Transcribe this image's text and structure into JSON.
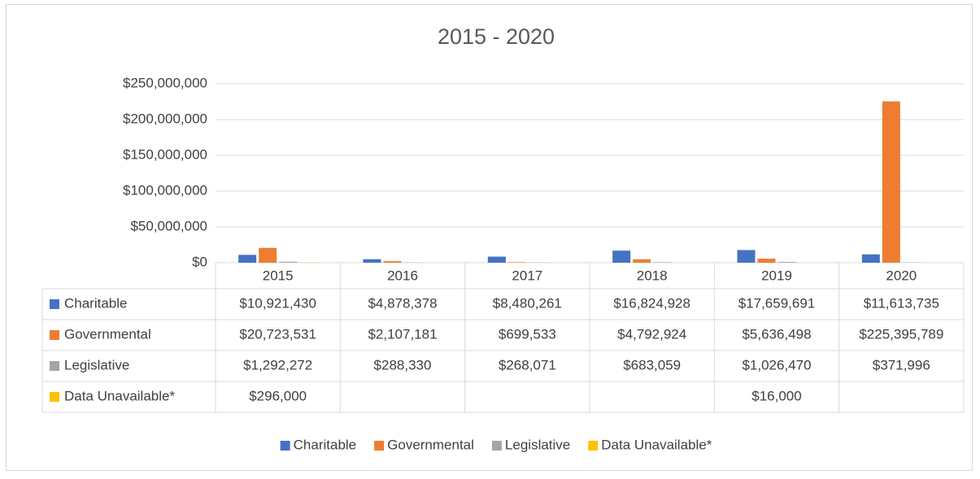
{
  "chart_data": {
    "type": "bar",
    "title": "2015 - 2020",
    "categories": [
      "2015",
      "2016",
      "2017",
      "2018",
      "2019",
      "2020"
    ],
    "series": [
      {
        "name": "Charitable",
        "color": "#4472c4",
        "values": [
          10921430,
          4878378,
          8480261,
          16824928,
          17659691,
          11613735
        ],
        "value_labels": [
          "$10,921,430",
          "$4,878,378",
          "$8,480,261",
          "$16,824,928",
          "$17,659,691",
          "$11,613,735"
        ]
      },
      {
        "name": "Governmental",
        "color": "#ed7d31",
        "values": [
          20723531,
          2107181,
          699533,
          4792924,
          5636498,
          225395789
        ],
        "value_labels": [
          "$20,723,531",
          "$2,107,181",
          "$699,533",
          "$4,792,924",
          "$5,636,498",
          "$225,395,789"
        ]
      },
      {
        "name": "Legislative",
        "color": "#a5a5a5",
        "values": [
          1292272,
          288330,
          268071,
          683059,
          1026470,
          371996
        ],
        "value_labels": [
          "$1,292,272",
          "$288,330",
          "$268,071",
          "$683,059",
          "$1,026,470",
          "$371,996"
        ]
      },
      {
        "name": "Data Unavailable*",
        "color": "#ffc000",
        "values": [
          296000,
          null,
          null,
          null,
          16000,
          null
        ],
        "value_labels": [
          "$296,000",
          null,
          null,
          null,
          "$16,000",
          null
        ]
      }
    ],
    "ylim": [
      0,
      250000000
    ],
    "yticks": [
      {
        "value": 0,
        "label": "$0"
      },
      {
        "value": 50000000,
        "label": "$50,000,000"
      },
      {
        "value": 100000000,
        "label": "$100,000,000"
      },
      {
        "value": 150000000,
        "label": "$150,000,000"
      },
      {
        "value": 200000000,
        "label": "$200,000,000"
      },
      {
        "value": 250000000,
        "label": "$250,000,000"
      }
    ],
    "grid": true,
    "legend": "bottom"
  }
}
